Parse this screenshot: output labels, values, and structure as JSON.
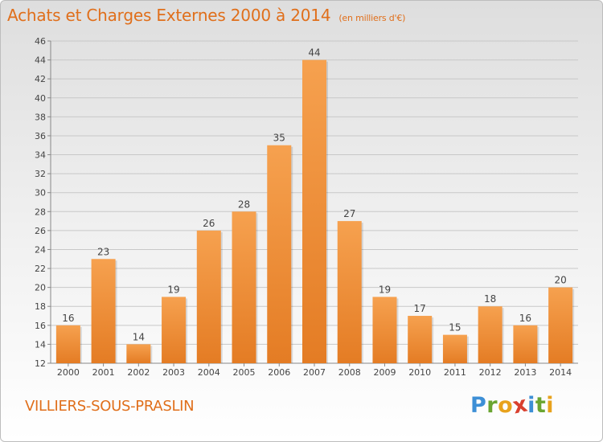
{
  "header": {
    "title": "Achats et Charges Externes 2000 à 2014",
    "subtitle": "(en milliers d'€)"
  },
  "footer": {
    "commune": "VILLIERS-SOUS-PRASLIN"
  },
  "logo": {
    "letters": [
      {
        "char": "P",
        "color": "#3d8fd6"
      },
      {
        "char": "r",
        "color": "#6aa531"
      },
      {
        "char": "o",
        "color": "#e8a21c"
      },
      {
        "char": "x",
        "color": "#d9402f"
      },
      {
        "char": "i",
        "color": "#3d8fd6"
      },
      {
        "char": "t",
        "color": "#6aa531"
      },
      {
        "char": "i",
        "color": "#e8a21c"
      }
    ]
  },
  "colors": {
    "accent": "#e06f1b",
    "bar_light": "#f6a14f",
    "bar_dark": "#e47c24",
    "grid": "#c8c8c8"
  },
  "chart_data": {
    "type": "bar",
    "title": "Achats et Charges Externes 2000 à 2014",
    "subtitle": "(en milliers d'€)",
    "categories": [
      "2000",
      "2001",
      "2002",
      "2003",
      "2004",
      "2005",
      "2006",
      "2007",
      "2008",
      "2009",
      "2010",
      "2011",
      "2012",
      "2013",
      "2014"
    ],
    "values": [
      16,
      23,
      14,
      19,
      26,
      28,
      35,
      44,
      27,
      19,
      17,
      15,
      18,
      16,
      20
    ],
    "ylim": [
      12,
      46
    ],
    "yticks": [
      12,
      14,
      16,
      18,
      20,
      22,
      24,
      26,
      28,
      30,
      32,
      34,
      36,
      38,
      40,
      42,
      44,
      46
    ],
    "grid": true,
    "data_labels": true
  }
}
